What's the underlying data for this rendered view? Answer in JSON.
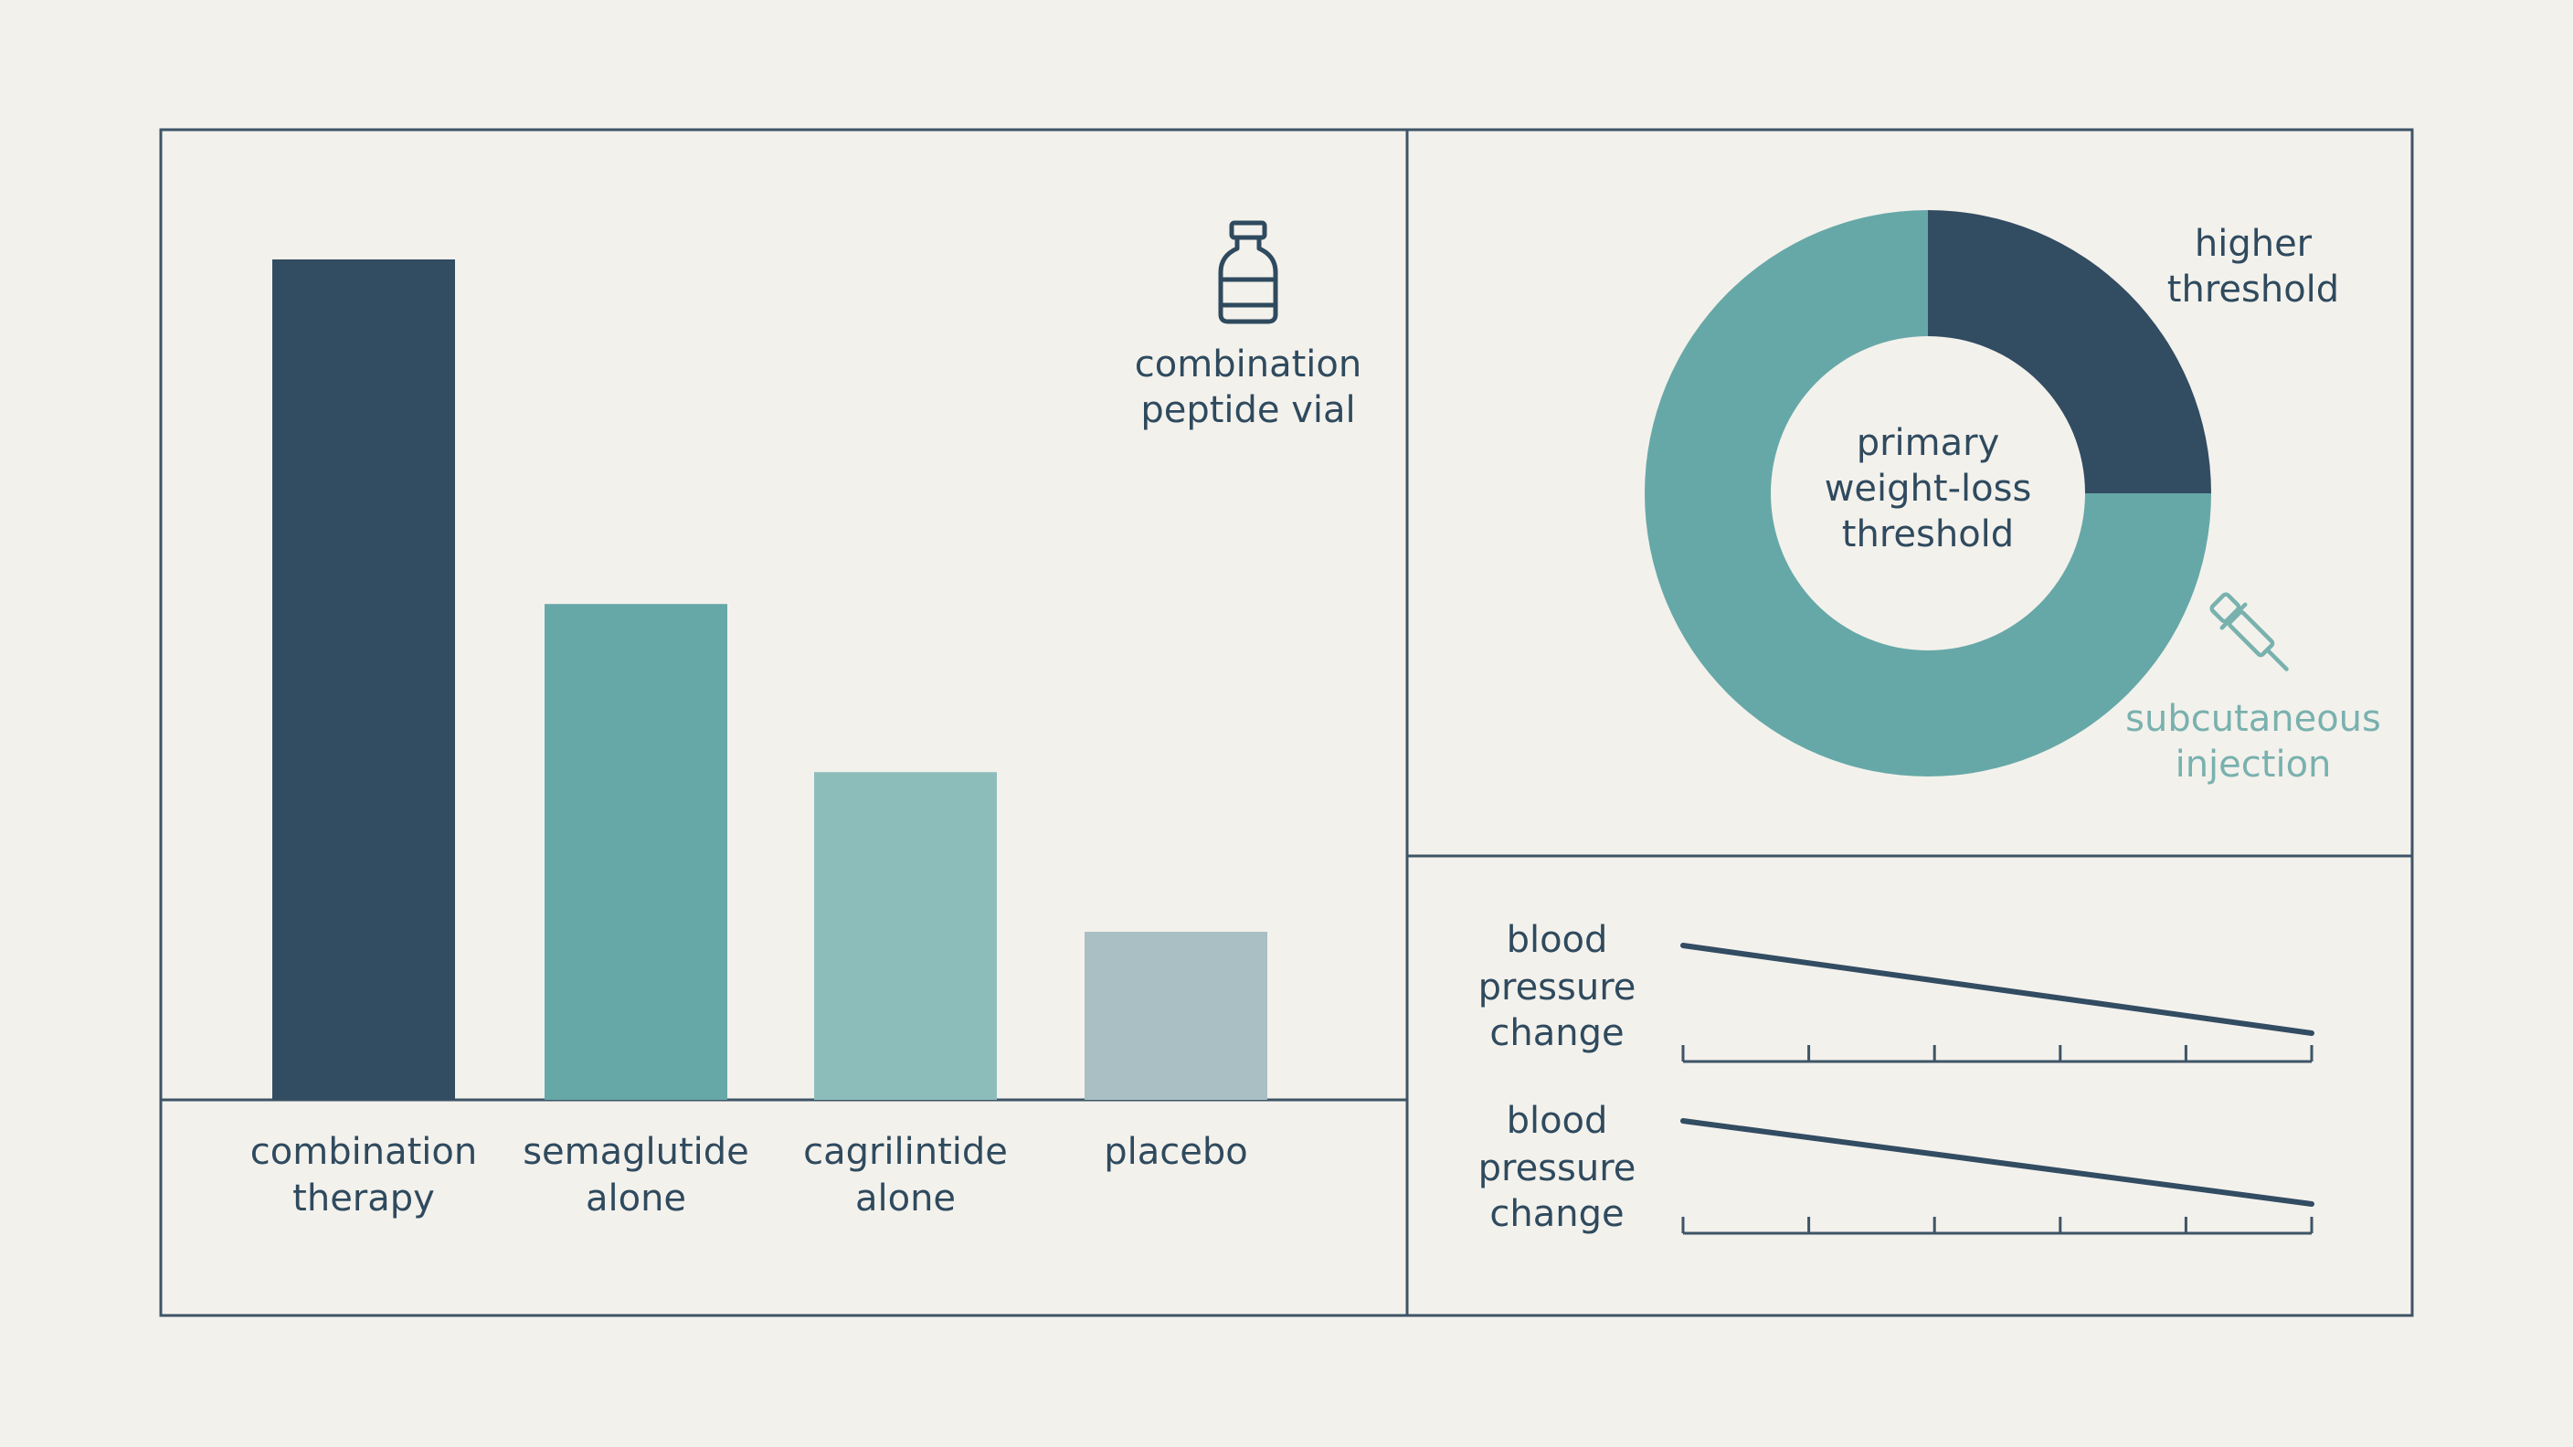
{
  "colors": {
    "background": "#f3f1ec",
    "frame": "#3e5466",
    "text": "#2f4a5e",
    "navy": "#324c62",
    "teal": "#66a8a7",
    "light_teal": "#8dbdbb",
    "gray_blue": "#a9bfc4",
    "teal_label": "#79b1ae"
  },
  "icons": {
    "vial": "vial-icon",
    "injection": "dropper-syringe-icon"
  },
  "chart_data": [
    {
      "type": "bar",
      "categories": [
        [
          "combination",
          "therapy"
        ],
        [
          "semaglutide",
          "alone"
        ],
        [
          "cagrilintide",
          "alone"
        ],
        [
          "placebo"
        ]
      ],
      "values": [
        100,
        59,
        39,
        20
      ],
      "ylim": [
        0,
        100
      ],
      "grid": false,
      "legend": "none",
      "bar_colors": [
        "#324c62",
        "#66a8a7",
        "#8dbdbb",
        "#a9bfc4"
      ],
      "annotations": [
        {
          "lines": [
            "combination",
            "peptide vial"
          ],
          "icon": "vial-icon",
          "placement": "top-right"
        }
      ]
    },
    {
      "type": "pie",
      "style": "donut",
      "slices": [
        {
          "label": [
            "higher",
            "threshold"
          ],
          "value": 25,
          "color": "#324c62"
        },
        {
          "label": [
            "subcutaneous",
            "injection"
          ],
          "value": 75,
          "color": "#66a8a7"
        }
      ],
      "center_label": [
        "primary",
        "weight-loss",
        "threshold"
      ]
    },
    {
      "type": "line",
      "ylabel": [
        "blood",
        "pressure",
        "change"
      ],
      "x": [
        0,
        1,
        2,
        3,
        4,
        5
      ],
      "y": [
        0,
        -0.2,
        -0.4,
        -0.6,
        -0.8,
        -1.0
      ],
      "ylim": [
        -1.0,
        0
      ],
      "grid": false
    },
    {
      "type": "line",
      "ylabel": [
        "blood",
        "pressure",
        "change"
      ],
      "x": [
        0,
        1,
        2,
        3,
        4,
        5
      ],
      "y": [
        0,
        -0.2,
        -0.4,
        -0.6,
        -0.8,
        -1.0
      ],
      "ylim": [
        -1.0,
        0
      ],
      "grid": false
    }
  ]
}
